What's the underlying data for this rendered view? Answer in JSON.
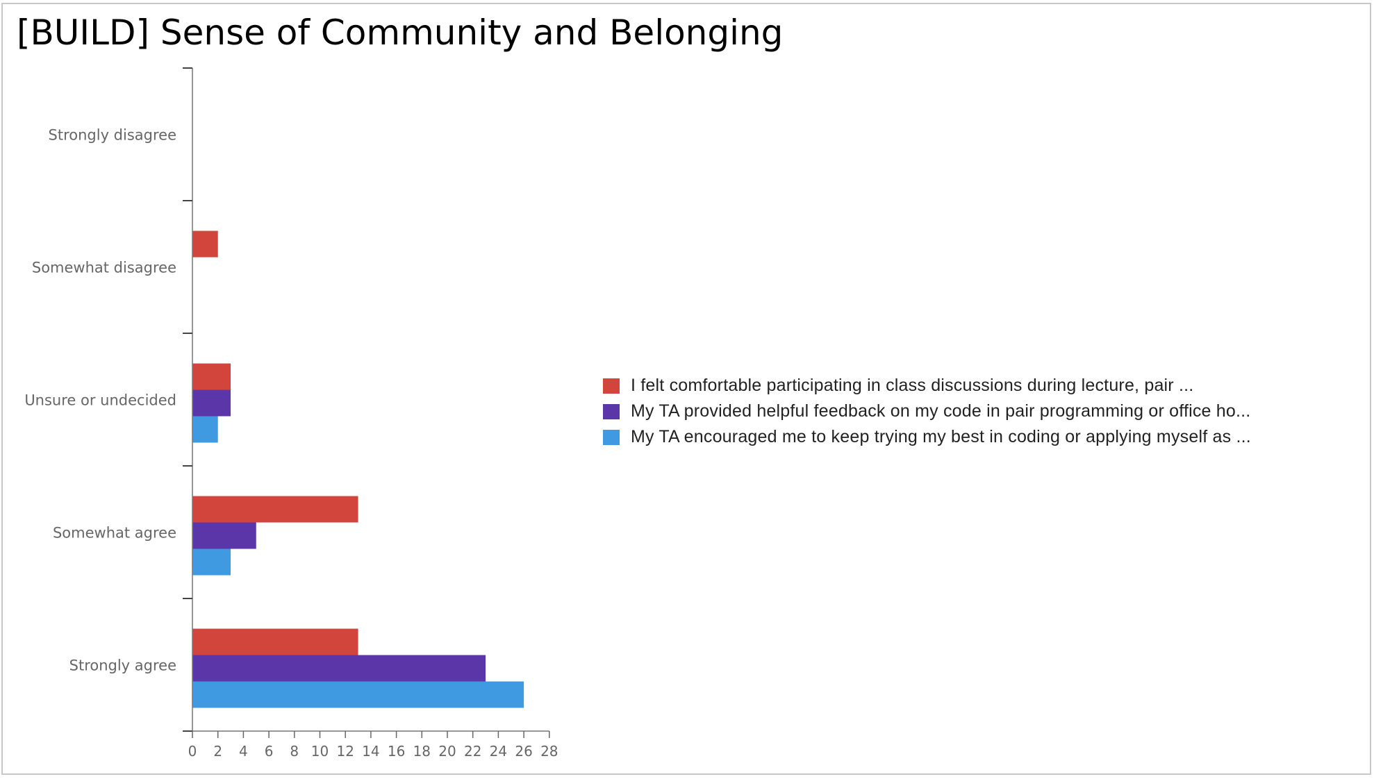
{
  "chart_data": {
    "type": "bar",
    "orientation": "horizontal",
    "title": "[BUILD] Sense of Community and Belonging",
    "categories": [
      "Strongly disagree",
      "Somewhat disagree",
      "Unsure or undecided",
      "Somewhat agree",
      "Strongly agree"
    ],
    "series": [
      {
        "name": "I felt comfortable participating in class discussions during lecture, pair ...",
        "color": "#d2453d",
        "values": [
          0,
          2,
          3,
          13,
          13
        ]
      },
      {
        "name": "My TA provided helpful feedback on my code in pair programming or office ho...",
        "color": "#5b36a8",
        "values": [
          0,
          0,
          3,
          5,
          23
        ]
      },
      {
        "name": "My TA encouraged me to keep trying my best in coding or applying myself as ...",
        "color": "#3f9ae2",
        "values": [
          0,
          0,
          2,
          3,
          26
        ]
      }
    ],
    "xlim": [
      0,
      28
    ],
    "x_ticks": [
      0,
      2,
      4,
      6,
      8,
      10,
      12,
      14,
      16,
      18,
      20,
      22,
      24,
      26,
      28
    ],
    "grid": false,
    "legend_position": "right"
  }
}
